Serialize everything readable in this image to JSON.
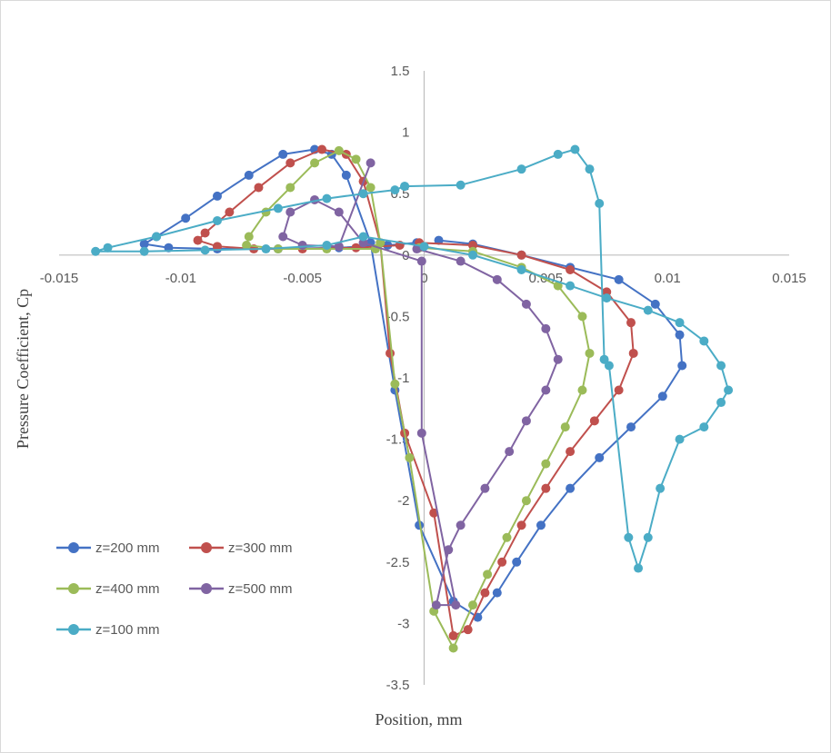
{
  "chart_data": {
    "type": "scatter",
    "title": "",
    "xlabel": "Position, mm",
    "ylabel": "Pressure Coefficient, Cp",
    "xlim": [
      -0.015,
      0.015
    ],
    "ylim": [
      -3.5,
      1.5
    ],
    "x_ticks": [
      -0.015,
      -0.01,
      -0.005,
      0,
      0.005,
      0.01,
      0.015
    ],
    "x_tick_labels": [
      "-0.015",
      "-0.01",
      "-0.005",
      "0",
      "0.005",
      "0.01",
      "0.015"
    ],
    "y_ticks": [
      1.5,
      1,
      0.5,
      0,
      -0.5,
      -1,
      -1.5,
      -2,
      -2.5,
      -3,
      -3.5
    ],
    "y_tick_labels": [
      "1.5",
      "1",
      "0.5",
      "0",
      "-0.5",
      "-1",
      "-1.5",
      "-2",
      "-2.5",
      "-3",
      "-3.5"
    ],
    "grid": false,
    "legend_position": "bottom-left",
    "series": [
      {
        "name": "z=200 mm",
        "color": "#4472C4",
        "points": [
          [
            0.0006,
            0.12
          ],
          [
            0.002,
            0.09
          ],
          [
            0.004,
            0.0
          ],
          [
            0.006,
            -0.1
          ],
          [
            0.008,
            -0.2
          ],
          [
            0.0095,
            -0.4
          ],
          [
            0.0105,
            -0.65
          ],
          [
            0.0106,
            -0.9
          ],
          [
            0.0098,
            -1.15
          ],
          [
            0.0085,
            -1.4
          ],
          [
            0.0072,
            -1.65
          ],
          [
            0.006,
            -1.9
          ],
          [
            0.0048,
            -2.2
          ],
          [
            0.0038,
            -2.5
          ],
          [
            0.003,
            -2.75
          ],
          [
            0.0022,
            -2.95
          ],
          [
            0.0012,
            -2.82
          ],
          [
            -0.0002,
            -2.2
          ],
          [
            -0.0012,
            -1.1
          ],
          [
            -0.0022,
            0.1
          ],
          [
            -0.0032,
            0.65
          ],
          [
            -0.0038,
            0.82
          ],
          [
            -0.0045,
            0.86
          ],
          [
            -0.0058,
            0.82
          ],
          [
            -0.0072,
            0.65
          ],
          [
            -0.0085,
            0.48
          ],
          [
            -0.0098,
            0.3
          ],
          [
            -0.011,
            0.15
          ],
          [
            -0.0115,
            0.09
          ],
          [
            -0.0105,
            0.06
          ],
          [
            -0.0085,
            0.05
          ],
          [
            -0.006,
            0.05
          ],
          [
            -0.0035,
            0.06
          ],
          [
            -0.0015,
            0.08
          ],
          [
            -0.0003,
            0.1
          ]
        ]
      },
      {
        "name": "z=300 mm",
        "color": "#C0504D",
        "points": [
          [
            -0.0002,
            0.1
          ],
          [
            0.002,
            0.08
          ],
          [
            0.004,
            0.0
          ],
          [
            0.006,
            -0.12
          ],
          [
            0.0075,
            -0.3
          ],
          [
            0.0085,
            -0.55
          ],
          [
            0.0086,
            -0.8
          ],
          [
            0.008,
            -1.1
          ],
          [
            0.007,
            -1.35
          ],
          [
            0.006,
            -1.6
          ],
          [
            0.005,
            -1.9
          ],
          [
            0.004,
            -2.2
          ],
          [
            0.0032,
            -2.5
          ],
          [
            0.0025,
            -2.75
          ],
          [
            0.0018,
            -3.05
          ],
          [
            0.0012,
            -3.1
          ],
          [
            0.0004,
            -2.1
          ],
          [
            -0.0008,
            -1.45
          ],
          [
            -0.0014,
            -0.8
          ],
          [
            -0.0018,
            0.1
          ],
          [
            -0.0025,
            0.6
          ],
          [
            -0.0032,
            0.82
          ],
          [
            -0.0042,
            0.86
          ],
          [
            -0.0055,
            0.75
          ],
          [
            -0.0068,
            0.55
          ],
          [
            -0.008,
            0.35
          ],
          [
            -0.009,
            0.18
          ],
          [
            -0.0093,
            0.12
          ],
          [
            -0.0085,
            0.07
          ],
          [
            -0.007,
            0.05
          ],
          [
            -0.005,
            0.05
          ],
          [
            -0.0028,
            0.06
          ],
          [
            -0.001,
            0.08
          ]
        ]
      },
      {
        "name": "z=400 mm",
        "color": "#9BBB59",
        "points": [
          [
            -0.0002,
            0.06
          ],
          [
            0.002,
            0.03
          ],
          [
            0.004,
            -0.1
          ],
          [
            0.0055,
            -0.25
          ],
          [
            0.0065,
            -0.5
          ],
          [
            0.0068,
            -0.8
          ],
          [
            0.0065,
            -1.1
          ],
          [
            0.0058,
            -1.4
          ],
          [
            0.005,
            -1.7
          ],
          [
            0.0042,
            -2.0
          ],
          [
            0.0034,
            -2.3
          ],
          [
            0.0026,
            -2.6
          ],
          [
            0.002,
            -2.85
          ],
          [
            0.0012,
            -3.2
          ],
          [
            0.0004,
            -2.9
          ],
          [
            -0.0006,
            -1.65
          ],
          [
            -0.0012,
            -1.05
          ],
          [
            -0.0018,
            0.1
          ],
          [
            -0.0022,
            0.55
          ],
          [
            -0.0028,
            0.78
          ],
          [
            -0.0035,
            0.85
          ],
          [
            -0.0045,
            0.75
          ],
          [
            -0.0055,
            0.55
          ],
          [
            -0.0065,
            0.35
          ],
          [
            -0.0072,
            0.15
          ],
          [
            -0.0073,
            0.08
          ],
          [
            -0.006,
            0.05
          ],
          [
            -0.004,
            0.05
          ],
          [
            -0.002,
            0.05
          ]
        ]
      },
      {
        "name": "z=500 mm",
        "color": "#8064A2",
        "points": [
          [
            -0.0003,
            0.05
          ],
          [
            0.0015,
            -0.05
          ],
          [
            0.003,
            -0.2
          ],
          [
            0.0042,
            -0.4
          ],
          [
            0.005,
            -0.6
          ],
          [
            0.0055,
            -0.85
          ],
          [
            0.005,
            -1.1
          ],
          [
            0.0042,
            -1.35
          ],
          [
            0.0035,
            -1.6
          ],
          [
            0.0025,
            -1.9
          ],
          [
            0.0015,
            -2.2
          ],
          [
            0.001,
            -2.4
          ],
          [
            0.0005,
            -2.85
          ],
          [
            0.0013,
            -2.85
          ],
          [
            -0.0001,
            -1.45
          ],
          [
            -0.0001,
            -0.05
          ],
          [
            -0.0025,
            0.1
          ],
          [
            -0.0035,
            0.35
          ],
          [
            -0.0045,
            0.45
          ],
          [
            -0.0055,
            0.35
          ],
          [
            -0.0058,
            0.15
          ],
          [
            -0.005,
            0.08
          ],
          [
            -0.0035,
            0.07
          ],
          [
            -0.0022,
            0.75
          ]
        ]
      },
      {
        "name": "z=100 mm",
        "color": "#4BACC6",
        "points": [
          [
            -0.0008,
            0.56
          ],
          [
            0.0015,
            0.57
          ],
          [
            0.004,
            0.7
          ],
          [
            0.0055,
            0.82
          ],
          [
            0.0062,
            0.86
          ],
          [
            0.0068,
            0.7
          ],
          [
            0.0072,
            0.42
          ],
          [
            0.0074,
            -0.85
          ],
          [
            0.0076,
            -0.9
          ],
          [
            0.0084,
            -2.3
          ],
          [
            0.0088,
            -2.55
          ],
          [
            0.0092,
            -2.3
          ],
          [
            0.0097,
            -1.9
          ],
          [
            0.0105,
            -1.5
          ],
          [
            0.0115,
            -1.4
          ],
          [
            0.0122,
            -1.2
          ],
          [
            0.0125,
            -1.1
          ],
          [
            0.0122,
            -0.9
          ],
          [
            0.0115,
            -0.7
          ],
          [
            0.0105,
            -0.55
          ],
          [
            0.0092,
            -0.45
          ],
          [
            0.0075,
            -0.35
          ],
          [
            0.006,
            -0.25
          ],
          [
            0.004,
            -0.12
          ],
          [
            0.002,
            0.0
          ],
          [
            0.0,
            0.07
          ],
          [
            -0.0025,
            0.15
          ],
          [
            -0.004,
            0.08
          ],
          [
            -0.0065,
            0.05
          ],
          [
            -0.009,
            0.04
          ],
          [
            -0.0115,
            0.03
          ],
          [
            -0.0135,
            0.03
          ],
          [
            -0.013,
            0.06
          ],
          [
            -0.011,
            0.15
          ],
          [
            -0.0085,
            0.28
          ],
          [
            -0.006,
            0.38
          ],
          [
            -0.004,
            0.46
          ],
          [
            -0.0025,
            0.5
          ],
          [
            -0.0012,
            0.53
          ],
          [
            -0.0008,
            0.56
          ]
        ]
      }
    ]
  }
}
